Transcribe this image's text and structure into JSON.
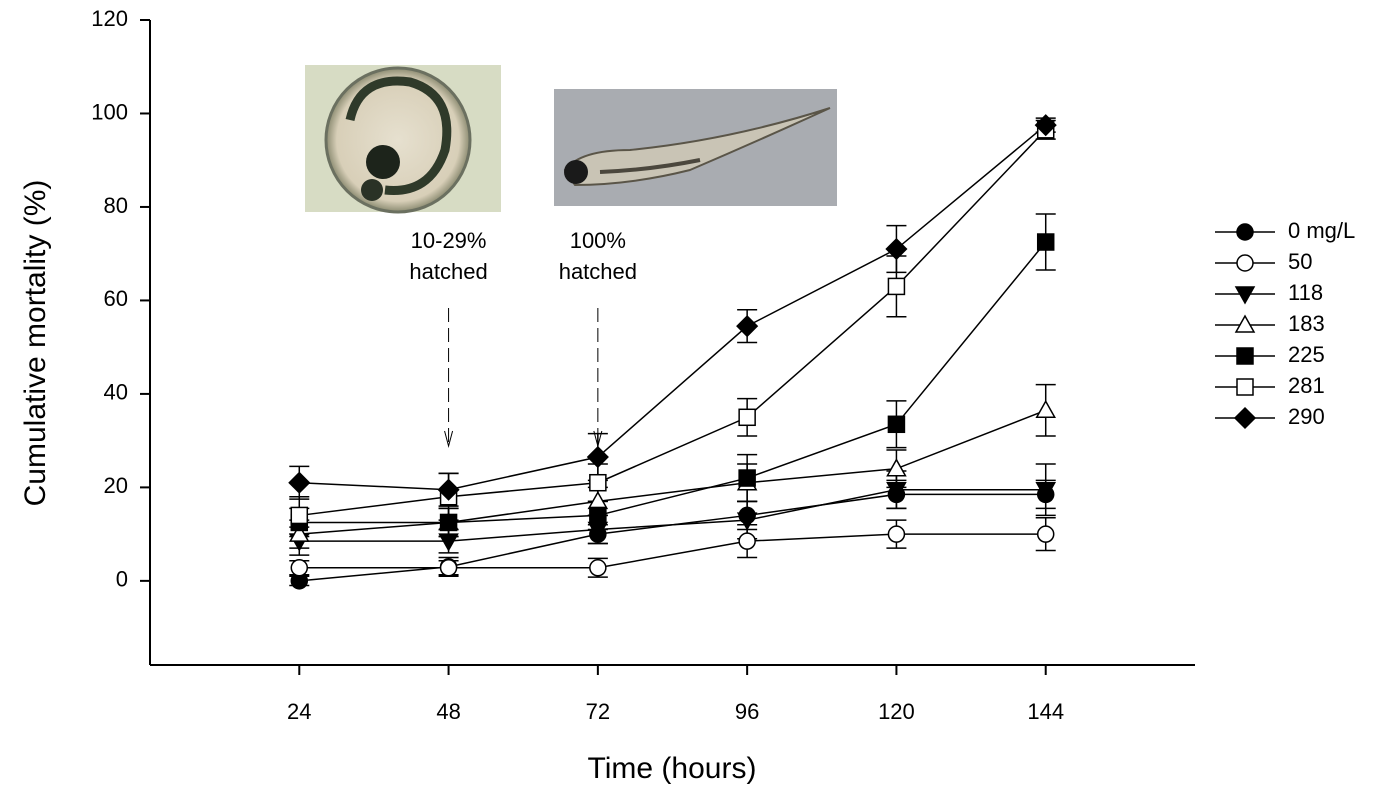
{
  "chart_data": {
    "type": "line",
    "xlabel": "Time (hours)",
    "ylabel": "Cumulative mortality (%)",
    "x": [
      24,
      48,
      72,
      96,
      120,
      144
    ],
    "xlim": [
      0,
      168
    ],
    "xticks": [
      24,
      48,
      72,
      96,
      120,
      144
    ],
    "ylim": [
      -18,
      120
    ],
    "yticks": [
      0,
      20,
      40,
      60,
      80,
      100,
      120
    ],
    "legend": "right",
    "series": [
      {
        "name": "0 mg/L",
        "color": "#000000",
        "marker": "circle",
        "fill": "#000000",
        "values": [
          0,
          3,
          10,
          14,
          18.5,
          18.5
        ],
        "errors": [
          1,
          2,
          2,
          3,
          3,
          3
        ]
      },
      {
        "name": "50",
        "color": "#000000",
        "marker": "circle",
        "fill": "#ffffff",
        "values": [
          2.8,
          2.8,
          2.8,
          8.5,
          10,
          10
        ],
        "errors": [
          1.5,
          1.5,
          2,
          3.5,
          3,
          3.5
        ]
      },
      {
        "name": "118",
        "color": "#000000",
        "marker": "triangle-down",
        "fill": "#000000",
        "values": [
          8.5,
          8.5,
          11,
          13,
          19.5,
          19.5
        ],
        "errors": [
          3,
          2.5,
          3,
          4,
          4,
          5.5
        ]
      },
      {
        "name": "183",
        "color": "#000000",
        "marker": "triangle-up",
        "fill": "#ffffff",
        "values": [
          10,
          12.5,
          17,
          21,
          24,
          36.5
        ],
        "errors": [
          3,
          3,
          3,
          4,
          4,
          5.5
        ]
      },
      {
        "name": "225",
        "color": "#000000",
        "marker": "square",
        "fill": "#000000",
        "values": [
          12.5,
          12.5,
          14,
          22,
          33.5,
          72.5
        ],
        "errors": [
          3,
          3,
          3,
          5,
          5,
          6
        ]
      },
      {
        "name": "281",
        "color": "#000000",
        "marker": "square",
        "fill": "#ffffff",
        "values": [
          14,
          18,
          21,
          35,
          63,
          96.5
        ],
        "errors": [
          4,
          5,
          4,
          4,
          6.5,
          2
        ]
      },
      {
        "name": "290",
        "color": "#000000",
        "marker": "diamond",
        "fill": "#000000",
        "values": [
          21,
          19.5,
          26.5,
          54.5,
          71,
          97.5
        ],
        "errors": [
          3.5,
          3.5,
          5,
          3.5,
          5,
          1.5
        ]
      }
    ],
    "annotations": [
      {
        "lines": [
          "10-29%",
          "hatched"
        ],
        "x": 48
      },
      {
        "lines": [
          "100%",
          "hatched"
        ],
        "x": 72
      }
    ]
  }
}
